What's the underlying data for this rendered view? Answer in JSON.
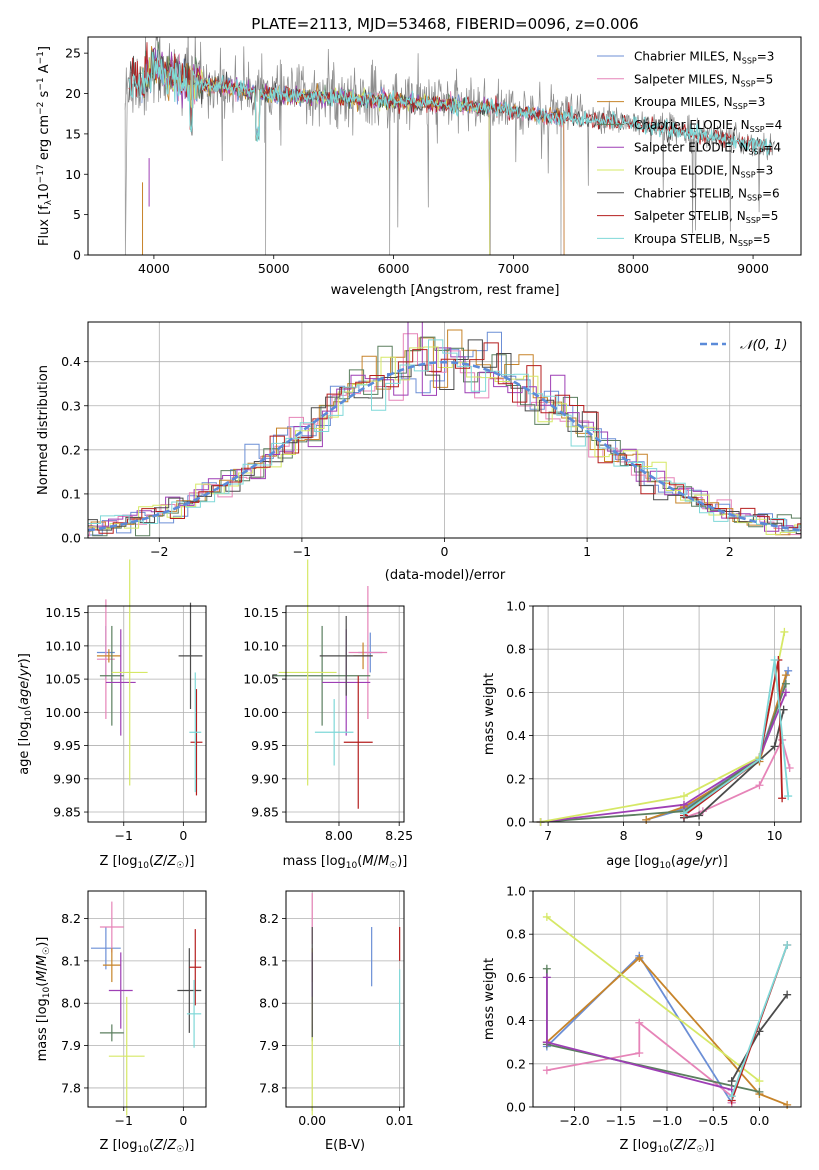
{
  "colors": {
    "Chabrier MILES": "#6c8fd6",
    "Salpeter MILES": "#e684b8",
    "Kroupa MILES": "#c7842a",
    "Chabrier ELODIE": "#5b7f5f",
    "Salpeter ELODIE": "#9e3fb5",
    "Kroupa ELODIE": "#d6e866",
    "Chabrier STELIB": "#4b4b4b",
    "Salpeter STELIB": "#b51f1f",
    "Kroupa STELIB": "#7fd8d8"
  },
  "chart_data": [
    {
      "id": "spectrum",
      "type": "line",
      "title": "PLATE=2113, MJD=53468, FIBERID=0096, z=0.006",
      "xlabel": "wavelength [Angstrom, rest frame]",
      "ylabel": "Flux [f",
      "ylabel_full": "Flux [fλ10⁻¹⁷ erg cm⁻² s⁻¹ A⁻¹]",
      "xlim": [
        3450,
        9400
      ],
      "ylim": [
        0,
        27
      ],
      "xticks": [
        4000,
        5000,
        6000,
        7000,
        8000,
        9000
      ],
      "yticks": [
        0,
        5,
        10,
        15,
        20,
        25
      ],
      "legend_position": "top-right",
      "legend": [
        {
          "label": "Chabrier MILES, N",
          "ssp": "3"
        },
        {
          "label": "Salpeter MILES, N",
          "ssp": "5"
        },
        {
          "label": "Kroupa MILES, N",
          "ssp": "3"
        },
        {
          "label": "Chabrier ELODIE, N",
          "ssp": "4"
        },
        {
          "label": "Salpeter ELODIE, N",
          "ssp": "4"
        },
        {
          "label": "Kroupa ELODIE, N",
          "ssp": "3"
        },
        {
          "label": "Chabrier STELIB, N",
          "ssp": "6"
        },
        {
          "label": "Salpeter STELIB, N",
          "ssp": "5"
        },
        {
          "label": "Kroupa STELIB, N",
          "ssp": "5"
        }
      ],
      "data_envelope": {
        "x": [
          3750,
          3800,
          3900,
          4000,
          4100,
          4300,
          4500,
          4700,
          4900,
          5100,
          5300,
          5500,
          5700,
          5900,
          6100,
          6300,
          6500,
          6700,
          6900,
          7100,
          7300,
          7500,
          7700,
          7900,
          8100,
          8300,
          8500,
          8700,
          8900,
          9100
        ],
        "y": [
          18,
          22,
          21,
          24,
          22.5,
          21.5,
          21.2,
          20.8,
          20.2,
          20,
          19.8,
          19.7,
          19.5,
          19.3,
          19.2,
          19,
          18.8,
          18.6,
          18.3,
          17.8,
          17.4,
          17.2,
          16.9,
          16.7,
          16.3,
          15.8,
          15.2,
          14.8,
          14.2,
          13.5
        ]
      }
    },
    {
      "id": "residuals",
      "type": "histogram",
      "xlabel": "(data-model)/error",
      "ylabel": "Normed distribution",
      "xlim": [
        -2.5,
        2.5
      ],
      "ylim": [
        0,
        0.49
      ],
      "xticks": [
        -2,
        -1,
        0,
        1,
        2
      ],
      "yticks": [
        0.0,
        0.1,
        0.2,
        0.3,
        0.4
      ],
      "legend_position": "top-right",
      "legend": [
        {
          "label": "N(0,1)",
          "style": "dashed"
        }
      ]
    },
    {
      "id": "age_vs_Z",
      "type": "errorbar",
      "xlabel": "Z [log10(Z/Z☉)]",
      "ylabel": "age [log10(age/yr)]",
      "xlim": [
        -1.6,
        0.38
      ],
      "ylim": [
        9.835,
        10.16
      ],
      "xticks": [
        -1,
        0
      ],
      "yticks": [
        9.85,
        9.9,
        9.95,
        10.0,
        10.05,
        10.1,
        10.15
      ],
      "points": [
        {
          "model": "Chabrier MILES",
          "x": -1.3,
          "xerr": 0.15,
          "y": 10.09,
          "yerr": 0.04
        },
        {
          "model": "Salpeter MILES",
          "x": -1.3,
          "xerr": 0.15,
          "y": 10.08,
          "yerr": 0.09
        },
        {
          "model": "Kroupa MILES",
          "x": -1.25,
          "xerr": 0.2,
          "y": 10.085,
          "yerr": 0.01
        },
        {
          "model": "Chabrier ELODIE",
          "x": -1.2,
          "xerr": 0.2,
          "y": 10.055,
          "yerr": 0.075
        },
        {
          "model": "Salpeter ELODIE",
          "x": -1.05,
          "xerr": 0.25,
          "y": 10.045,
          "yerr": 0.08
        },
        {
          "model": "Kroupa ELODIE",
          "x": -0.9,
          "xerr": 0.3,
          "y": 10.06,
          "yerr": 0.17
        },
        {
          "model": "Chabrier STELIB",
          "x": 0.12,
          "xerr": 0.2,
          "y": 10.085,
          "yerr": 0.08
        },
        {
          "model": "Salpeter STELIB",
          "x": 0.22,
          "xerr": 0.1,
          "y": 9.955,
          "yerr": 0.08
        },
        {
          "model": "Kroupa STELIB",
          "x": 0.2,
          "xerr": 0.1,
          "y": 9.97,
          "yerr": 0.09
        }
      ]
    },
    {
      "id": "age_vs_mass",
      "type": "errorbar",
      "xlabel": "mass [log10(M/M☉)]",
      "ylabel": "",
      "xlim": [
        7.78,
        8.27
      ],
      "ylim": [
        9.835,
        10.16
      ],
      "xticks": [
        8.0,
        8.25
      ],
      "yticks": [
        9.85,
        9.9,
        9.95,
        10.0,
        10.05,
        10.1,
        10.15
      ],
      "points": [
        {
          "model": "Chabrier MILES",
          "x": 8.13,
          "xerr": 0.05,
          "y": 10.09,
          "yerr": 0.03
        },
        {
          "model": "Salpeter MILES",
          "x": 8.12,
          "xerr": 0.08,
          "y": 10.09,
          "yerr": 0.1
        },
        {
          "model": "Kroupa MILES",
          "x": 8.1,
          "xerr": 0.04,
          "y": 10.085,
          "yerr": 0.02
        },
        {
          "model": "Chabrier ELODIE",
          "x": 7.93,
          "xerr": 0.2,
          "y": 10.055,
          "yerr": 0.075
        },
        {
          "model": "Salpeter ELODIE",
          "x": 8.03,
          "xerr": 0.1,
          "y": 10.045,
          "yerr": 0.08
        },
        {
          "model": "Kroupa ELODIE",
          "x": 7.87,
          "xerr": 0.12,
          "y": 10.06,
          "yerr": 0.17
        },
        {
          "model": "Chabrier STELIB",
          "x": 8.03,
          "xerr": 0.11,
          "y": 10.085,
          "yerr": 0.06
        },
        {
          "model": "Salpeter STELIB",
          "x": 8.08,
          "xerr": 0.06,
          "y": 9.955,
          "yerr": 0.1
        },
        {
          "model": "Kroupa STELIB",
          "x": 7.98,
          "xerr": 0.08,
          "y": 9.97,
          "yerr": 0.05
        }
      ]
    },
    {
      "id": "weight_vs_age",
      "type": "line",
      "xlabel": "age [log10(age/yr)]",
      "ylabel": "mass weight",
      "xlim": [
        6.8,
        10.35
      ],
      "ylim": [
        0,
        1.0
      ],
      "xticks": [
        7,
        8,
        9,
        10
      ],
      "yticks": [
        0.0,
        0.2,
        0.4,
        0.6,
        0.8,
        1.0
      ],
      "series": [
        {
          "model": "Chabrier MILES",
          "x": [
            8.3,
            8.8,
            9.8,
            10.18
          ],
          "y": [
            0.01,
            0.06,
            0.3,
            0.7
          ]
        },
        {
          "model": "Salpeter MILES",
          "x": [
            8.8,
            9.05,
            9.8,
            10.1,
            10.2
          ],
          "y": [
            0.02,
            0.05,
            0.17,
            0.38,
            0.25
          ]
        },
        {
          "model": "Kroupa MILES",
          "x": [
            8.3,
            8.8,
            9.8,
            10.15
          ],
          "y": [
            0.01,
            0.07,
            0.28,
            0.68
          ]
        },
        {
          "model": "Chabrier ELODIE",
          "x": [
            6.9,
            8.8,
            9.8,
            10.15
          ],
          "y": [
            0.0,
            0.05,
            0.3,
            0.64
          ]
        },
        {
          "model": "Salpeter ELODIE",
          "x": [
            6.9,
            8.8,
            9.8,
            10.15
          ],
          "y": [
            0.0,
            0.08,
            0.3,
            0.6
          ]
        },
        {
          "model": "Kroupa ELODIE",
          "x": [
            6.9,
            8.8,
            9.8,
            10.13
          ],
          "y": [
            0.0,
            0.12,
            0.3,
            0.88
          ]
        },
        {
          "model": "Chabrier STELIB",
          "x": [
            8.8,
            9.0,
            10.0,
            10.12
          ],
          "y": [
            0.02,
            0.03,
            0.35,
            0.52
          ]
        },
        {
          "model": "Salpeter STELIB",
          "x": [
            8.8,
            9.8,
            10.05,
            10.1
          ],
          "y": [
            0.03,
            0.29,
            0.75,
            0.11
          ]
        },
        {
          "model": "Kroupa STELIB",
          "x": [
            8.8,
            9.8,
            10.0,
            10.18
          ],
          "y": [
            0.04,
            0.29,
            0.75,
            0.12
          ]
        }
      ]
    },
    {
      "id": "mass_vs_Z",
      "type": "errorbar",
      "xlabel": "Z [log10(Z/Z☉)]",
      "ylabel": "mass [log10(M/M☉)]",
      "xlim": [
        -1.6,
        0.38
      ],
      "ylim": [
        7.755,
        8.265
      ],
      "xticks": [
        -1,
        0
      ],
      "yticks": [
        7.8,
        7.9,
        8.0,
        8.1,
        8.2
      ],
      "points": [
        {
          "model": "Chabrier MILES",
          "x": -1.3,
          "xerr": 0.25,
          "y": 8.13,
          "yerr": 0.05
        },
        {
          "model": "Salpeter MILES",
          "x": -1.2,
          "xerr": 0.2,
          "y": 8.18,
          "yerr": 0.06
        },
        {
          "model": "Kroupa MILES",
          "x": -1.2,
          "xerr": 0.15,
          "y": 8.09,
          "yerr": 0.04
        },
        {
          "model": "Chabrier ELODIE",
          "x": -1.2,
          "xerr": 0.2,
          "y": 7.93,
          "yerr": 0.02
        },
        {
          "model": "Salpeter ELODIE",
          "x": -1.05,
          "xerr": 0.2,
          "y": 8.03,
          "yerr": 0.09
        },
        {
          "model": "Kroupa ELODIE",
          "x": -0.95,
          "xerr": 0.3,
          "y": 7.875,
          "yerr": 0.14
        },
        {
          "model": "Chabrier STELIB",
          "x": 0.1,
          "xerr": 0.2,
          "y": 8.03,
          "yerr": 0.1
        },
        {
          "model": "Salpeter STELIB",
          "x": 0.2,
          "xerr": 0.1,
          "y": 8.085,
          "yerr": 0.09
        },
        {
          "model": "Kroupa STELIB",
          "x": 0.18,
          "xerr": 0.12,
          "y": 7.975,
          "yerr": 0.08
        }
      ]
    },
    {
      "id": "mass_vs_ebv",
      "type": "errorbar",
      "xlabel": "E(B-V)",
      "ylabel": "",
      "xlim": [
        -0.003,
        0.0105
      ],
      "ylim": [
        7.755,
        8.265
      ],
      "xticks": [
        0.0,
        0.01
      ],
      "yticks": [
        7.8,
        7.9,
        8.0,
        8.1,
        8.2
      ],
      "points": [
        {
          "model": "Chabrier MILES",
          "x": 0.0068,
          "xerr": 0,
          "y": 8.11,
          "yerr": 0.07
        },
        {
          "model": "Salpeter MILES",
          "x": 0.0,
          "xerr": 0,
          "y": 8.2,
          "yerr": 0.06
        },
        {
          "model": "Kroupa MILES",
          "x": 0.0,
          "xerr": 0,
          "y": 8.09,
          "yerr": 0.04
        },
        {
          "model": "Chabrier ELODIE",
          "x": 0.0,
          "xerr": 0,
          "y": 7.93,
          "yerr": 0.02
        },
        {
          "model": "Salpeter ELODIE",
          "x": 0.0,
          "xerr": 0,
          "y": 8.03,
          "yerr": 0.09
        },
        {
          "model": "Kroupa ELODIE",
          "x": 0.0,
          "xerr": 0,
          "y": 7.875,
          "yerr": 0.14
        },
        {
          "model": "Chabrier STELIB",
          "x": 0.0,
          "xerr": 0,
          "y": 8.05,
          "yerr": 0.13
        },
        {
          "model": "Salpeter STELIB",
          "x": 0.01,
          "xerr": 0,
          "y": 8.14,
          "yerr": 0.04
        },
        {
          "model": "Kroupa STELIB",
          "x": 0.01,
          "xerr": 0,
          "y": 7.99,
          "yerr": 0.09
        }
      ]
    },
    {
      "id": "weight_vs_Z",
      "type": "line",
      "xlabel": "Z [log10(Z/Z☉)]",
      "ylabel": "mass weight",
      "xlim": [
        -2.45,
        0.45
      ],
      "ylim": [
        0,
        1.0
      ],
      "xticks": [
        -2.0,
        -1.5,
        -1.0,
        -0.5,
        0.0
      ],
      "yticks": [
        0.0,
        0.2,
        0.4,
        0.6,
        0.8,
        1.0
      ],
      "series": [
        {
          "model": "Chabrier MILES",
          "x": [
            -2.3,
            -1.3,
            -0.3
          ],
          "y": [
            0.28,
            0.7,
            0.02
          ]
        },
        {
          "model": "Salpeter MILES",
          "x": [
            -2.3,
            -1.3,
            -1.3,
            -0.3,
            -0.3
          ],
          "y": [
            0.17,
            0.25,
            0.39,
            0.05,
            0.02
          ]
        },
        {
          "model": "Kroupa MILES",
          "x": [
            -2.3,
            -1.3,
            0.0,
            0.3
          ],
          "y": [
            0.3,
            0.69,
            0.06,
            0.01
          ]
        },
        {
          "model": "Chabrier ELODIE",
          "x": [
            -2.3,
            -2.3,
            0.0
          ],
          "y": [
            0.64,
            0.29,
            0.07
          ]
        },
        {
          "model": "Salpeter ELODIE",
          "x": [
            -2.3,
            -2.3,
            -0.3
          ],
          "y": [
            0.6,
            0.3,
            0.08
          ]
        },
        {
          "model": "Kroupa ELODIE",
          "x": [
            -2.3,
            0.0
          ],
          "y": [
            0.88,
            0.12
          ]
        },
        {
          "model": "Chabrier STELIB",
          "x": [
            -0.3,
            0.0,
            0.3
          ],
          "y": [
            0.12,
            0.35,
            0.52
          ]
        },
        {
          "model": "Salpeter STELIB",
          "x": [
            -0.3,
            0.3
          ],
          "y": [
            0.03,
            0.75
          ]
        },
        {
          "model": "Kroupa STELIB",
          "x": [
            -0.3,
            0.3
          ],
          "y": [
            0.05,
            0.75
          ]
        }
      ]
    }
  ]
}
